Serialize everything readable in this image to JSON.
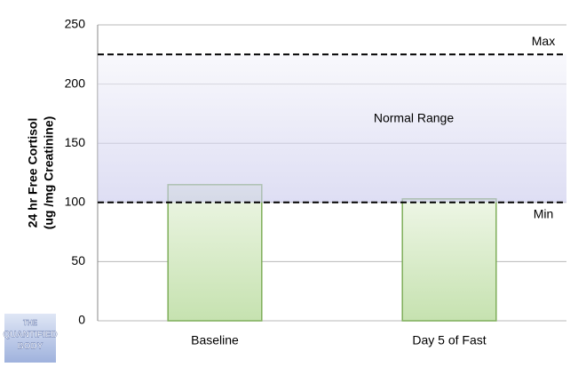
{
  "chart_data": {
    "type": "bar",
    "y_label": [
      "24 hr Free Cortisol",
      "(ug /mg Creatinine)"
    ],
    "categories": [
      "Baseline",
      "Day 5 of Fast"
    ],
    "values": [
      115,
      103
    ],
    "color": "#c9e3b4",
    "ylim": [
      0,
      250
    ],
    "yticks": [
      0,
      50,
      100,
      150,
      200,
      250
    ],
    "grid": true,
    "reference_lines": [
      {
        "label": "Max",
        "value": 225
      },
      {
        "label": "Min",
        "value": 100
      }
    ],
    "band_label": "Normal Range"
  },
  "logo": [
    "THE",
    "QUANTIFIED",
    "BODY"
  ]
}
